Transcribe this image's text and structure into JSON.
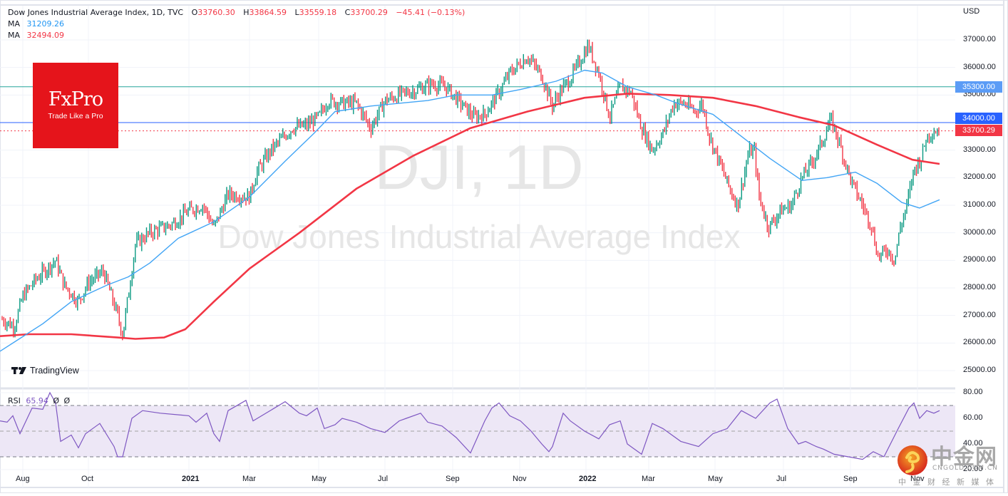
{
  "header": {
    "symbol_title": "Dow Jones Industrial Average Index, 1D, TVC",
    "open_label": "O",
    "open": "33760.30",
    "high_label": "H",
    "high": "33864.59",
    "low_label": "L",
    "low": "33559.18",
    "close_label": "C",
    "close": "33700.29",
    "change": "−45.41 (−0.13%)",
    "ma1_label": "MA",
    "ma1_value": "31209.26",
    "ma2_label": "MA",
    "ma2_value": "32494.09"
  },
  "watermark": {
    "ticker": "DJI, 1D",
    "name": "Dow Jones Industrial Average Index"
  },
  "logo": {
    "brand": "FxPro",
    "tagline": "Trade Like a Pro"
  },
  "tradingview": {
    "label": "TradingView"
  },
  "rsi": {
    "label": "RSI",
    "value": "65.94",
    "extra1": "Ø",
    "extra2": "Ø"
  },
  "price_axis": {
    "currency": "USD",
    "ticks": [
      "37000.00",
      "36000.00",
      "35000.00",
      "34000.00",
      "33000.00",
      "32000.00",
      "31000.00",
      "30000.00",
      "29000.00",
      "28000.00",
      "27000.00",
      "26000.00",
      "25000.00"
    ],
    "tags": [
      {
        "value": "35300.00",
        "color": "#5b9cf6"
      },
      {
        "value": "34000.00",
        "color": "#2962ff"
      },
      {
        "value": "33700.29",
        "color": "#f23645"
      }
    ]
  },
  "rsi_axis": {
    "ticks": [
      "80.00",
      "60.00",
      "40.00",
      "20.00"
    ]
  },
  "time_axis": {
    "labels": [
      "Aug",
      "Oct",
      "2021",
      "Mar",
      "May",
      "Jul",
      "Sep",
      "Nov",
      "2022",
      "Mar",
      "May",
      "Jul",
      "Sep",
      "Nov"
    ]
  },
  "cngold_watermark": {
    "title": "中金网",
    "domain": "CNGOLD.COM.CN",
    "subtitle": "中 金 财 经 新 媒 体"
  },
  "colors": {
    "up": "#089981",
    "down": "#f23645",
    "ma_fast": "#42a5f5",
    "ma_slow": "#f23645",
    "rsi_line": "#7e57c2",
    "rsi_band": "#ede7f6",
    "hline_1": "#26a69a",
    "hline_2": "#2962ff"
  },
  "chart_data": {
    "type": "candlestick",
    "title": "Dow Jones Industrial Average Index, 1D, TVC",
    "ylabel": "USD",
    "ylim": [
      24700,
      37400
    ],
    "x_labels": [
      "Aug 2020",
      "Oct 2020",
      "2021",
      "Mar 2021",
      "May 2021",
      "Jul 2021",
      "Sep 2021",
      "Nov 2021",
      "2022",
      "Mar 2022",
      "May 2022",
      "Jul 2022",
      "Sep 2022",
      "Nov 2022"
    ],
    "last_bar": {
      "open": 33760.3,
      "high": 33864.59,
      "low": 33559.18,
      "close": 33700.29,
      "change": -45.41,
      "change_pct": -0.13
    },
    "approx_close_path": [
      {
        "x": "Jul 2020",
        "close": 26900
      },
      {
        "x": "Aug 2020",
        "close": 27800
      },
      {
        "x": "Sep 2020",
        "close": 27800
      },
      {
        "x": "Oct 2020",
        "close": 28300
      },
      {
        "x": "Nov 2020",
        "close": 29600
      },
      {
        "x": "Dec 2020",
        "close": 30400
      },
      {
        "x": "Jan 2021",
        "close": 30900
      },
      {
        "x": "Feb 2021",
        "close": 31500
      },
      {
        "x": "Mar 2021",
        "close": 32900
      },
      {
        "x": "Apr 2021",
        "close": 34000
      },
      {
        "x": "May 2021",
        "close": 34600
      },
      {
        "x": "Jun 2021",
        "close": 34500
      },
      {
        "x": "Jul 2021",
        "close": 35000
      },
      {
        "x": "Aug 2021",
        "close": 35400
      },
      {
        "x": "Sep 2021",
        "close": 34000
      },
      {
        "x": "Oct 2021",
        "close": 35800
      },
      {
        "x": "Nov 2021",
        "close": 35200
      },
      {
        "x": "Dec 2021",
        "close": 36300
      },
      {
        "x": "Jan 2022",
        "close": 35100
      },
      {
        "x": "Feb 2022",
        "close": 33900
      },
      {
        "x": "Mar 2022",
        "close": 34700
      },
      {
        "x": "Apr 2022",
        "close": 34000
      },
      {
        "x": "May 2022",
        "close": 32900
      },
      {
        "x": "Jun 2022",
        "close": 30800
      },
      {
        "x": "Jul 2022",
        "close": 32000
      },
      {
        "x": "Aug 2022",
        "close": 33600
      },
      {
        "x": "Sep 2022",
        "close": 29300
      },
      {
        "x": "Oct 2022",
        "close": 31500
      },
      {
        "x": "Nov 2022",
        "close": 33700
      }
    ],
    "series": [
      {
        "name": "MA (fast)",
        "last": 31209.26,
        "color": "#42a5f5"
      },
      {
        "name": "MA (slow)",
        "last": 32494.09,
        "color": "#f23645"
      }
    ],
    "horizontal_lines": [
      {
        "value": 35300.0,
        "color": "#26a69a"
      },
      {
        "value": 34000.0,
        "color": "#2962ff"
      },
      {
        "value": 33700.29,
        "color": "#f23645",
        "style": "dotted"
      }
    ],
    "sub_chart": {
      "name": "RSI",
      "last": 65.94,
      "ylim": [
        15,
        82
      ],
      "bands": [
        30,
        50,
        70
      ],
      "ticks": [
        80,
        60,
        40,
        20
      ]
    }
  }
}
